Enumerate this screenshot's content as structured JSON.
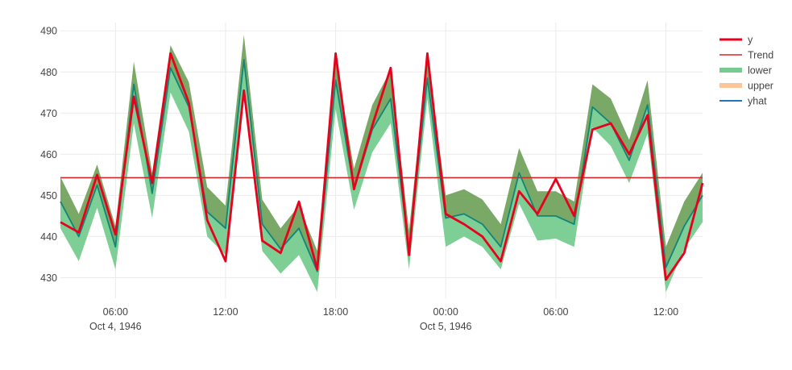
{
  "chart_data": {
    "type": "line",
    "x_start": "1946-10-04T03:00",
    "x_step_hours": 1,
    "x_ticks": [
      {
        "label": "06:00",
        "sublabel": "Oct 4, 1946",
        "time": "1946-10-04T06:00"
      },
      {
        "label": "12:00",
        "sublabel": "",
        "time": "1946-10-04T12:00"
      },
      {
        "label": "18:00",
        "sublabel": "",
        "time": "1946-10-04T18:00"
      },
      {
        "label": "00:00",
        "sublabel": "Oct 5, 1946",
        "time": "1946-10-05T00:00"
      },
      {
        "label": "06:00",
        "sublabel": "",
        "time": "1946-10-05T06:00"
      },
      {
        "label": "12:00",
        "sublabel": "",
        "time": "1946-10-05T12:00"
      }
    ],
    "ylim": [
      425,
      492
    ],
    "y_ticks": [
      430,
      440,
      450,
      460,
      470,
      480,
      490
    ],
    "grid": true,
    "legend_position": "right",
    "series": [
      {
        "name": "y",
        "role": "line",
        "color": "#e8001c",
        "values": [
          443.5,
          441,
          455,
          440.5,
          474,
          453,
          484.5,
          472.5,
          444,
          434,
          475.5,
          439,
          436,
          448.5,
          432,
          484.5,
          451.5,
          467,
          481,
          435.5,
          484.5,
          445.5,
          443,
          440,
          434,
          451,
          445.5,
          454,
          445,
          466,
          467.5,
          460,
          469.5,
          429.5,
          436,
          453
        ]
      },
      {
        "name": "Trend",
        "role": "hline",
        "color": "#d62728",
        "value": 454.3
      },
      {
        "name": "lower",
        "role": "band",
        "color": "#76cc8f",
        "values": [
          442,
          434,
          447,
          432,
          467.5,
          444.5,
          475,
          465.5,
          440,
          435.5,
          475,
          436.5,
          431,
          435.5,
          426.5,
          471,
          446.5,
          460.5,
          467.5,
          432,
          473.5,
          437.5,
          440,
          437.5,
          432,
          448,
          439,
          439.5,
          437.5,
          466.5,
          462,
          453,
          465,
          426.5,
          437,
          443.5
        ]
      },
      {
        "name": "upper",
        "role": "band",
        "color": "#6b9e55",
        "legend_color": "#fdbf8f",
        "values": [
          454.5,
          445.5,
          457.5,
          442.5,
          482.5,
          455.5,
          486.5,
          477.5,
          452,
          447.5,
          489,
          449,
          442,
          447.5,
          436.5,
          483.5,
          456.5,
          472,
          480.5,
          441.5,
          483.5,
          450,
          451.5,
          449,
          443,
          461.5,
          451,
          451,
          448.5,
          477,
          473.5,
          463.5,
          478,
          437.5,
          448.5,
          455.5
        ]
      },
      {
        "name": "yhat",
        "role": "line",
        "color": "#1f77b4",
        "draw_color": "#11857a",
        "values": [
          448.5,
          440,
          452.5,
          437.5,
          477,
          450.5,
          481,
          471.5,
          446,
          442,
          483,
          443,
          437,
          442,
          431.5,
          478,
          451.5,
          466,
          473.5,
          436.5,
          478.5,
          444.5,
          445.5,
          443,
          437.5,
          455.5,
          445,
          445,
          443,
          471.5,
          467.5,
          458.5,
          472,
          432.5,
          442.5,
          450
        ]
      }
    ]
  }
}
